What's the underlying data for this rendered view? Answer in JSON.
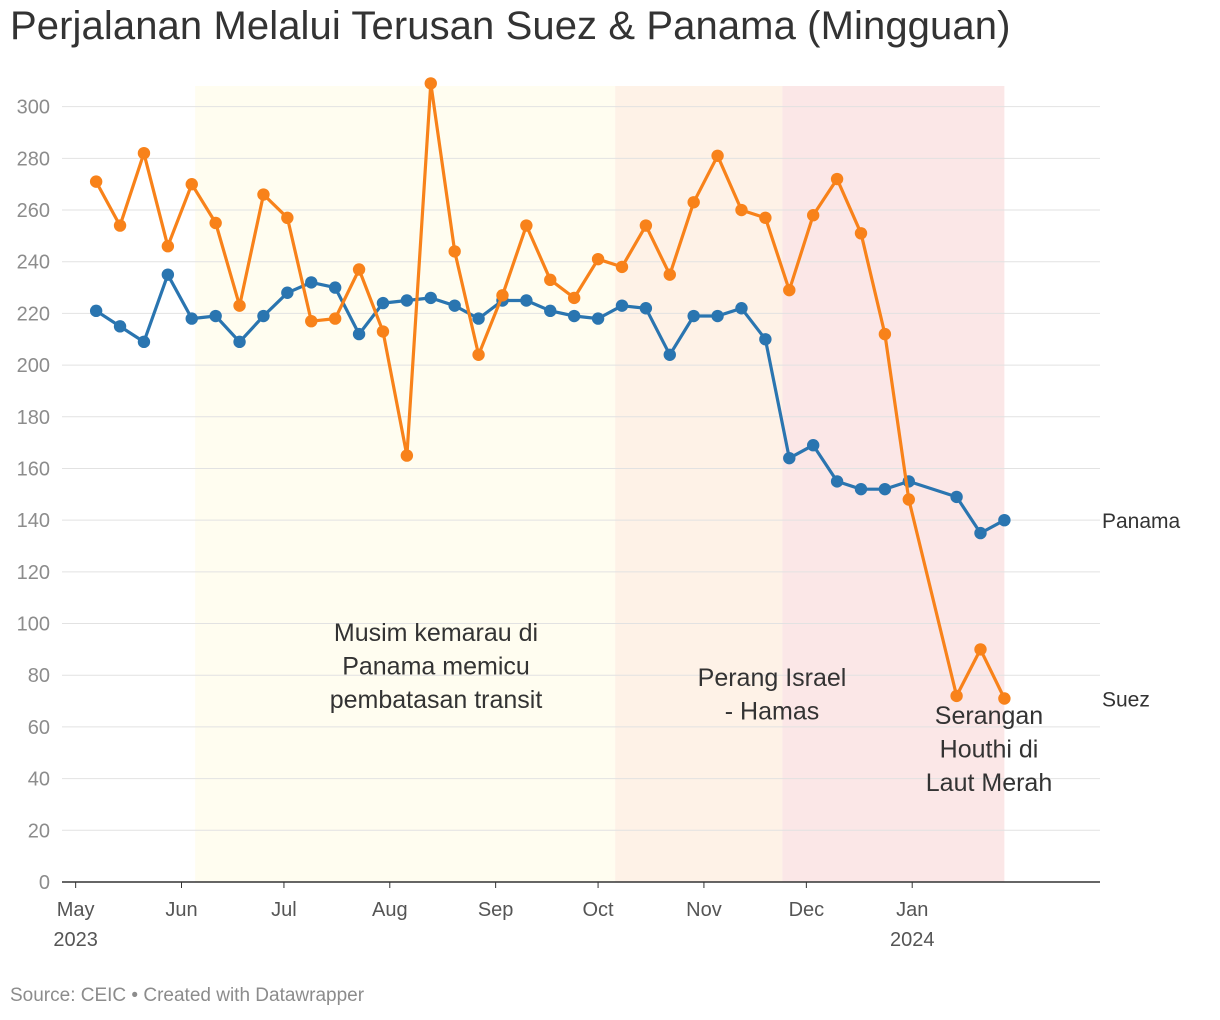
{
  "chart_data": {
    "type": "line",
    "title": "Perjalanan Melalui Terusan Suez & Panama (Mingguan)",
    "source": "Source: CEIC • Created with Datawrapper",
    "xlabel": "",
    "ylabel": "",
    "ylim": [
      0,
      308
    ],
    "yticks": [
      0,
      20,
      40,
      60,
      80,
      100,
      120,
      140,
      160,
      180,
      200,
      220,
      240,
      260,
      280,
      300
    ],
    "grid": true,
    "x_range": [
      "2023-04-27",
      "2024-02-25"
    ],
    "x_ticks": [
      {
        "date": "2023-05-01",
        "label": "May",
        "year": "2023"
      },
      {
        "date": "2023-06-01",
        "label": "Jun",
        "year": ""
      },
      {
        "date": "2023-07-01",
        "label": "Jul",
        "year": ""
      },
      {
        "date": "2023-08-01",
        "label": "Aug",
        "year": ""
      },
      {
        "date": "2023-09-01",
        "label": "Sep",
        "year": ""
      },
      {
        "date": "2023-10-01",
        "label": "Oct",
        "year": ""
      },
      {
        "date": "2023-11-01",
        "label": "Nov",
        "year": ""
      },
      {
        "date": "2023-12-01",
        "label": "Dec",
        "year": ""
      },
      {
        "date": "2024-01-01",
        "label": "Jan",
        "year": "2024"
      }
    ],
    "ranges": [
      {
        "start": "2023-06-05",
        "end": "2023-10-06",
        "color": "#fffdf0",
        "label_lines": [
          "Musim kemarau di",
          "Panama memicu",
          "pembatasan transit"
        ]
      },
      {
        "start": "2023-10-06",
        "end": "2023-11-24",
        "color": "#fef2e7",
        "label_lines": [
          "Perang Israel",
          "- Hamas"
        ]
      },
      {
        "start": "2023-11-24",
        "end": "2024-01-28",
        "color": "#fbe7e7",
        "label_lines": [
          "Serangan",
          "Houthi di",
          "Laut Merah"
        ]
      }
    ],
    "series": [
      {
        "name": "Panama",
        "color": "#2a75b0",
        "points": [
          [
            "2023-05-07",
            221
          ],
          [
            "2023-05-14",
            215
          ],
          [
            "2023-05-21",
            209
          ],
          [
            "2023-05-28",
            235
          ],
          [
            "2023-06-04",
            218
          ],
          [
            "2023-06-11",
            219
          ],
          [
            "2023-06-18",
            209
          ],
          [
            "2023-06-25",
            219
          ],
          [
            "2023-07-02",
            228
          ],
          [
            "2023-07-09",
            232
          ],
          [
            "2023-07-16",
            230
          ],
          [
            "2023-07-23",
            212
          ],
          [
            "2023-07-30",
            224
          ],
          [
            "2023-08-06",
            225
          ],
          [
            "2023-08-13",
            226
          ],
          [
            "2023-08-20",
            223
          ],
          [
            "2023-08-27",
            218
          ],
          [
            "2023-09-03",
            225
          ],
          [
            "2023-09-10",
            225
          ],
          [
            "2023-09-17",
            221
          ],
          [
            "2023-09-24",
            219
          ],
          [
            "2023-10-01",
            218
          ],
          [
            "2023-10-08",
            223
          ],
          [
            "2023-10-15",
            222
          ],
          [
            "2023-10-22",
            204
          ],
          [
            "2023-10-29",
            219
          ],
          [
            "2023-11-05",
            219
          ],
          [
            "2023-11-12",
            222
          ],
          [
            "2023-11-19",
            210
          ],
          [
            "2023-11-26",
            164
          ],
          [
            "2023-12-03",
            169
          ],
          [
            "2023-12-10",
            155
          ],
          [
            "2023-12-17",
            152
          ],
          [
            "2023-12-24",
            152
          ],
          [
            "2023-12-31",
            155
          ],
          [
            "2024-01-14",
            149
          ],
          [
            "2024-01-21",
            135
          ],
          [
            "2024-01-28",
            140
          ]
        ]
      },
      {
        "name": "Suez",
        "color": "#f8821a",
        "points": [
          [
            "2023-05-07",
            271
          ],
          [
            "2023-05-14",
            254
          ],
          [
            "2023-05-21",
            282
          ],
          [
            "2023-05-28",
            246
          ],
          [
            "2023-06-04",
            270
          ],
          [
            "2023-06-11",
            255
          ],
          [
            "2023-06-18",
            223
          ],
          [
            "2023-06-25",
            266
          ],
          [
            "2023-07-02",
            257
          ],
          [
            "2023-07-09",
            217
          ],
          [
            "2023-07-16",
            218
          ],
          [
            "2023-07-23",
            237
          ],
          [
            "2023-07-30",
            213
          ],
          [
            "2023-08-06",
            165
          ],
          [
            "2023-08-13",
            309
          ],
          [
            "2023-08-20",
            244
          ],
          [
            "2023-08-27",
            204
          ],
          [
            "2023-09-03",
            227
          ],
          [
            "2023-09-10",
            254
          ],
          [
            "2023-09-17",
            233
          ],
          [
            "2023-09-24",
            226
          ],
          [
            "2023-10-01",
            241
          ],
          [
            "2023-10-08",
            238
          ],
          [
            "2023-10-15",
            254
          ],
          [
            "2023-10-22",
            235
          ],
          [
            "2023-10-29",
            263
          ],
          [
            "2023-11-05",
            281
          ],
          [
            "2023-11-12",
            260
          ],
          [
            "2023-11-19",
            257
          ],
          [
            "2023-11-26",
            229
          ],
          [
            "2023-12-03",
            258
          ],
          [
            "2023-12-10",
            272
          ],
          [
            "2023-12-17",
            251
          ],
          [
            "2023-12-24",
            212
          ],
          [
            "2023-12-31",
            148
          ],
          [
            "2024-01-14",
            72
          ],
          [
            "2024-01-21",
            90
          ],
          [
            "2024-01-28",
            71
          ]
        ]
      }
    ]
  }
}
